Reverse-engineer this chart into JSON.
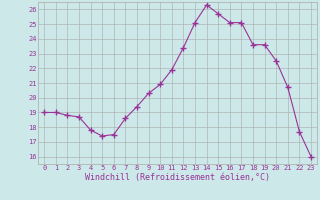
{
  "x": [
    0,
    1,
    2,
    3,
    4,
    5,
    6,
    7,
    8,
    9,
    10,
    11,
    12,
    13,
    14,
    15,
    16,
    17,
    18,
    19,
    20,
    21,
    22,
    23
  ],
  "y": [
    19.0,
    19.0,
    18.8,
    18.7,
    17.8,
    17.4,
    17.5,
    18.6,
    19.4,
    20.3,
    20.9,
    21.9,
    23.4,
    25.1,
    26.3,
    25.7,
    25.1,
    25.1,
    23.6,
    23.6,
    22.5,
    20.7,
    17.7,
    16.0
  ],
  "line_color": "#993399",
  "marker": "+",
  "marker_size": 4,
  "linewidth": 0.8,
  "xlabel": "Windchill (Refroidissement éolien,°C)",
  "ylim": [
    15.5,
    26.5
  ],
  "xlim": [
    -0.5,
    23.5
  ],
  "yticks": [
    16,
    17,
    18,
    19,
    20,
    21,
    22,
    23,
    24,
    25,
    26
  ],
  "xticks": [
    0,
    1,
    2,
    3,
    4,
    5,
    6,
    7,
    8,
    9,
    10,
    11,
    12,
    13,
    14,
    15,
    16,
    17,
    18,
    19,
    20,
    21,
    22,
    23
  ],
  "bg_color": "#cce8e8",
  "grid_color": "#aaaaaa",
  "label_color": "#993399",
  "tick_fontsize": 5.0,
  "xlabel_fontsize": 6.0,
  "marker_color": "#993399"
}
